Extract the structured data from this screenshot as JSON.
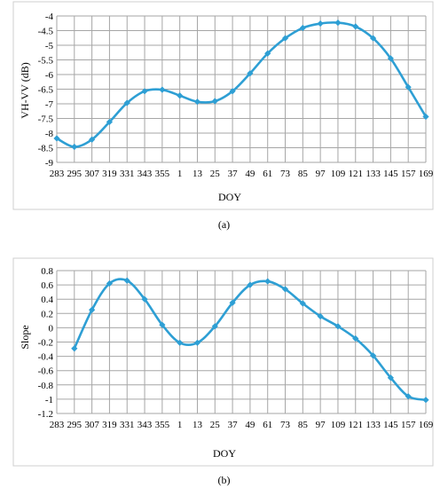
{
  "chart_data": [
    {
      "type": "line",
      "categories": [
        "283",
        "295",
        "307",
        "319",
        "331",
        "343",
        "355",
        "1",
        "13",
        "25",
        "37",
        "49",
        "61",
        "73",
        "85",
        "97",
        "109",
        "121",
        "133",
        "145",
        "157",
        "169"
      ],
      "series": [
        {
          "values": [
            -8.18,
            -8.47,
            -8.22,
            -7.62,
            -6.97,
            -6.57,
            -6.52,
            -6.72,
            -6.93,
            -6.91,
            -6.57,
            -5.96,
            -5.28,
            -4.76,
            -4.41,
            -4.26,
            -4.23,
            -4.36,
            -4.76,
            -5.45,
            -6.43,
            -7.44
          ]
        }
      ],
      "xlabel": "DOY",
      "ylabel": "VH-VV (dB)",
      "ylim": [
        -9,
        -4
      ],
      "yticks": [
        "-4",
        "-4.5",
        "-5",
        "-5.5",
        "-6",
        "-6.5",
        "-7",
        "-7.5",
        "-8",
        "-8.5",
        "-9"
      ],
      "grid": true,
      "color": "#2e9fd4",
      "caption": "(a)"
    },
    {
      "type": "line",
      "categories": [
        "283",
        "295",
        "307",
        "319",
        "331",
        "343",
        "355",
        "1",
        "13",
        "25",
        "37",
        "49",
        "61",
        "73",
        "85",
        "97",
        "109",
        "121",
        "133",
        "145",
        "157",
        "169"
      ],
      "series": [
        {
          "values": [
            null,
            -0.29,
            0.25,
            0.62,
            0.66,
            0.4,
            0.04,
            -0.21,
            -0.21,
            0.02,
            0.35,
            0.6,
            0.65,
            0.54,
            0.34,
            0.16,
            0.02,
            -0.15,
            -0.39,
            -0.7,
            -0.96,
            -1.01
          ]
        }
      ],
      "xlabel": "DOY",
      "ylabel": "Slope",
      "ylim": [
        -1.2,
        0.8
      ],
      "yticks": [
        "0.8",
        "0.6",
        "0.4",
        "0.2",
        "0",
        "-0.2",
        "-0.4",
        "-0.6",
        "-0.8",
        "-1",
        "-1.2"
      ],
      "grid": true,
      "color": "#2e9fd4",
      "caption": "(b)"
    }
  ]
}
